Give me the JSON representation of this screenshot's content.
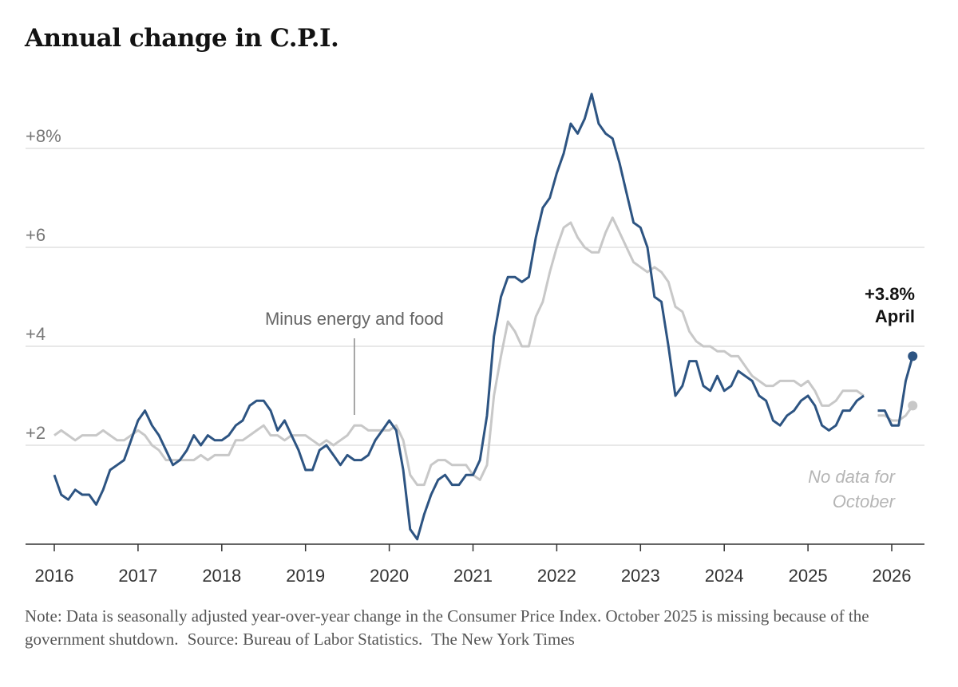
{
  "title": "Annual change in C.P.I.",
  "note": {
    "text": "Note: Data is seasonally adjusted year-over-year change in the Consumer Price Index. October 2025 is missing because of the government shutdown.",
    "source": "Source: Bureau of Labor Statistics.",
    "credit": "The New York Times"
  },
  "chart_data": {
    "type": "line",
    "title": "Annual change in C.P.I.",
    "xlabel": "",
    "ylabel": "",
    "xlim": [
      2016.0,
      2026.5
    ],
    "ylim": [
      0,
      9.4
    ],
    "grid": true,
    "x_ticks": [
      2016,
      2017,
      2018,
      2019,
      2020,
      2021,
      2022,
      2023,
      2024,
      2025,
      2026
    ],
    "x_tick_labels": [
      "2016",
      "2017",
      "2018",
      "2019",
      "2020",
      "2021",
      "2022",
      "2023",
      "2024",
      "2025",
      "2026"
    ],
    "y_ticks": [
      2,
      4,
      6,
      8
    ],
    "y_tick_labels": [
      "+2",
      "+4",
      "+6",
      "+8%"
    ],
    "colors": {
      "all_items": "#2d5482",
      "core": "#c8c8c8",
      "grid": "#e0e0e0",
      "axis": "#333333"
    },
    "annotations": {
      "core_label": "Minus energy and food",
      "end_value": "+3.8%",
      "end_month": "April",
      "missing_note_line1": "No data for",
      "missing_note_line2": "October"
    },
    "series": [
      {
        "key": "all_items",
        "start": "2016-01",
        "gap_after": "2025-09",
        "values": [
          1.4,
          1.0,
          0.9,
          1.1,
          1.0,
          1.0,
          0.8,
          1.1,
          1.5,
          1.6,
          1.7,
          2.1,
          2.5,
          2.7,
          2.4,
          2.2,
          1.9,
          1.6,
          1.7,
          1.9,
          2.2,
          2.0,
          2.2,
          2.1,
          2.1,
          2.2,
          2.4,
          2.5,
          2.8,
          2.9,
          2.9,
          2.7,
          2.3,
          2.5,
          2.2,
          1.9,
          1.5,
          1.5,
          1.9,
          2.0,
          1.8,
          1.6,
          1.8,
          1.7,
          1.7,
          1.8,
          2.1,
          2.3,
          2.5,
          2.3,
          1.5,
          0.3,
          0.1,
          0.6,
          1.0,
          1.3,
          1.4,
          1.2,
          1.2,
          1.4,
          1.4,
          1.7,
          2.6,
          4.2,
          5.0,
          5.4,
          5.4,
          5.3,
          5.4,
          6.2,
          6.8,
          7.0,
          7.5,
          7.9,
          8.5,
          8.3,
          8.6,
          9.1,
          8.5,
          8.3,
          8.2,
          7.7,
          7.1,
          6.5,
          6.4,
          6.0,
          5.0,
          4.9,
          4.0,
          3.0,
          3.2,
          3.7,
          3.7,
          3.2,
          3.1,
          3.4,
          3.1,
          3.2,
          3.5,
          3.4,
          3.3,
          3.0,
          2.9,
          2.5,
          2.4,
          2.6,
          2.7,
          2.9,
          3.0,
          2.8,
          2.4,
          2.3,
          2.4,
          2.7,
          2.7,
          2.9,
          3.0
        ],
        "resume": "2025-11",
        "resume_values": [
          2.7,
          2.7,
          2.4,
          2.4,
          3.3,
          3.8
        ]
      },
      {
        "key": "core",
        "start": "2016-01",
        "gap_after": "2025-09",
        "values": [
          2.2,
          2.3,
          2.2,
          2.1,
          2.2,
          2.2,
          2.2,
          2.3,
          2.2,
          2.1,
          2.1,
          2.2,
          2.3,
          2.2,
          2.0,
          1.9,
          1.7,
          1.7,
          1.7,
          1.7,
          1.7,
          1.8,
          1.7,
          1.8,
          1.8,
          1.8,
          2.1,
          2.1,
          2.2,
          2.3,
          2.4,
          2.2,
          2.2,
          2.1,
          2.2,
          2.2,
          2.2,
          2.1,
          2.0,
          2.1,
          2.0,
          2.1,
          2.2,
          2.4,
          2.4,
          2.3,
          2.3,
          2.3,
          2.3,
          2.4,
          2.1,
          1.4,
          1.2,
          1.2,
          1.6,
          1.7,
          1.7,
          1.6,
          1.6,
          1.6,
          1.4,
          1.3,
          1.6,
          3.0,
          3.8,
          4.5,
          4.3,
          4.0,
          4.0,
          4.6,
          4.9,
          5.5,
          6.0,
          6.4,
          6.5,
          6.2,
          6.0,
          5.9,
          5.9,
          6.3,
          6.6,
          6.3,
          6.0,
          5.7,
          5.6,
          5.5,
          5.6,
          5.5,
          5.3,
          4.8,
          4.7,
          4.3,
          4.1,
          4.0,
          4.0,
          3.9,
          3.9,
          3.8,
          3.8,
          3.6,
          3.4,
          3.3,
          3.2,
          3.2,
          3.3,
          3.3,
          3.3,
          3.2,
          3.3,
          3.1,
          2.8,
          2.8,
          2.9,
          3.1,
          3.1,
          3.1,
          3.0
        ],
        "resume": "2025-11",
        "resume_values": [
          2.6,
          2.6,
          2.5,
          2.5,
          2.6,
          2.8
        ]
      }
    ]
  }
}
